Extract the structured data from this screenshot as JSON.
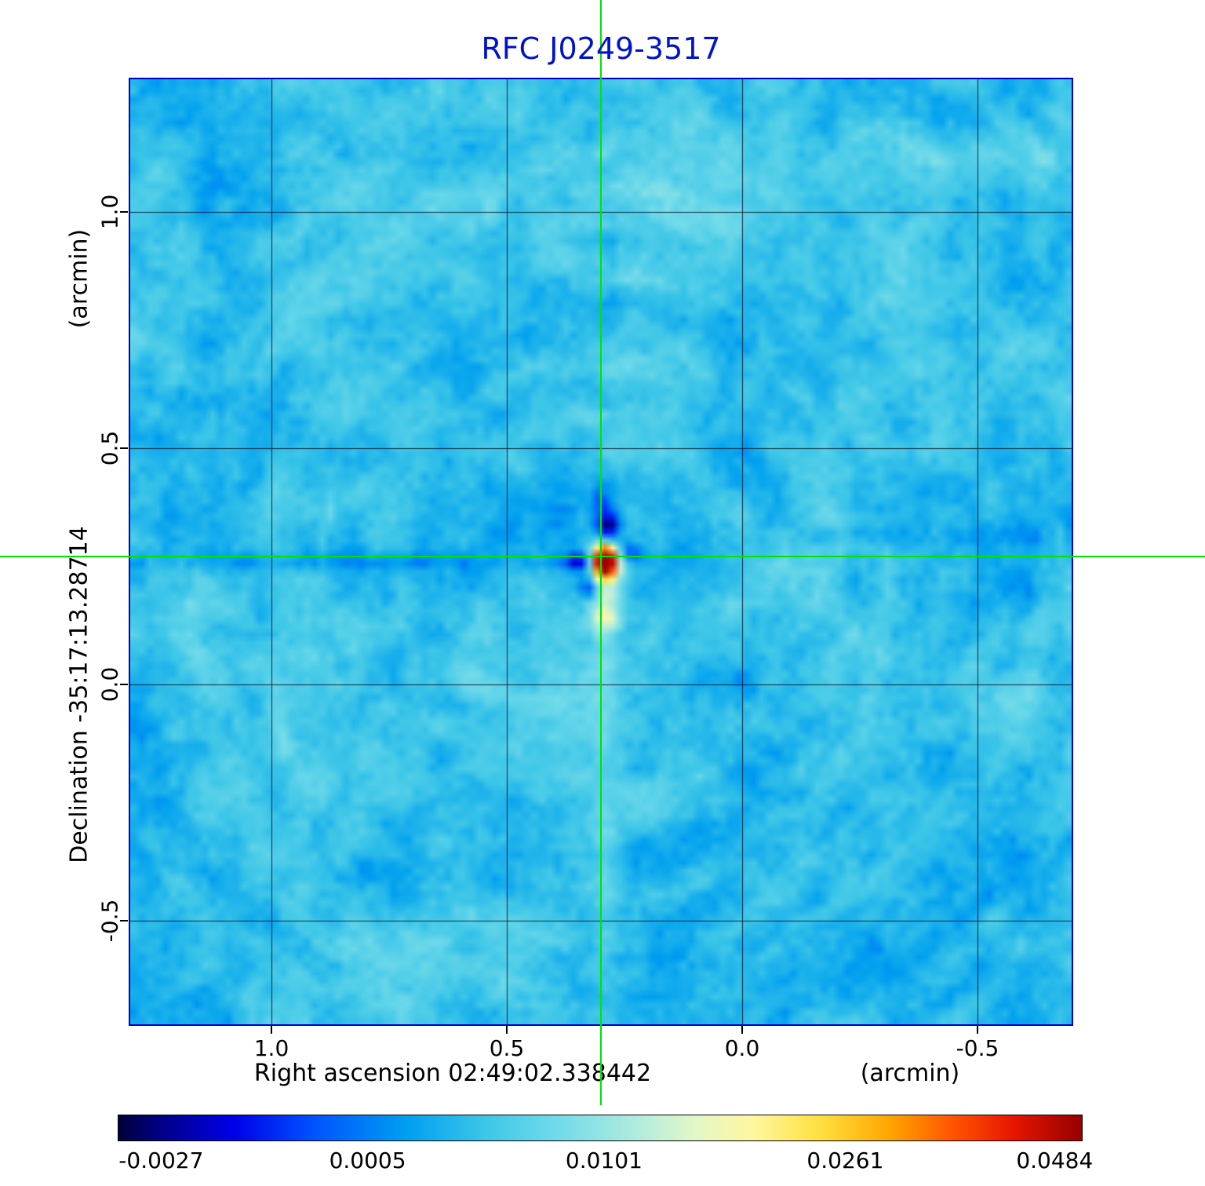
{
  "title": "RFC J0249-3517",
  "colors": {
    "title": "#0013cc",
    "frame": "#0000c4",
    "crosshair": "#00e400",
    "grid_line": "rgba(10,10,30,0.85)",
    "axis_text": "#000000",
    "colorbar_border": "#000000"
  },
  "axes": {
    "y_unit": "(arcmin)",
    "y_label": "Declination  -35:17:13.28714",
    "x_label": "Right ascension  02:49:02.338442",
    "x_unit": "(arcmin)",
    "x_tick_labels": [
      "1.0",
      "0.5",
      "0.0",
      "-0.5"
    ],
    "y_tick_labels": [
      "1.0",
      "0.5",
      "0.0",
      "-0.5"
    ]
  },
  "colorbar": {
    "tick_labels": [
      "-0.0027",
      "0.0005",
      "0.0101",
      "0.0261",
      "0.0484"
    ],
    "tick_positions": [
      0.045,
      0.259,
      0.504,
      0.754,
      0.971
    ],
    "gradient_stops": [
      [
        0.0,
        "#000038"
      ],
      [
        0.05,
        "#000090"
      ],
      [
        0.12,
        "#0000e8"
      ],
      [
        0.2,
        "#0050ff"
      ],
      [
        0.3,
        "#00a0f0"
      ],
      [
        0.38,
        "#3cc6e8"
      ],
      [
        0.46,
        "#74dcea"
      ],
      [
        0.54,
        "#b2ecdd"
      ],
      [
        0.6,
        "#e4f7c8"
      ],
      [
        0.66,
        "#fff79e"
      ],
      [
        0.73,
        "#ffdf3e"
      ],
      [
        0.8,
        "#ffa600"
      ],
      [
        0.87,
        "#ff4f00"
      ],
      [
        0.93,
        "#e61500"
      ],
      [
        1.0,
        "#970000"
      ]
    ]
  },
  "chart_data": {
    "type": "heatmap",
    "title": "RFC J0249-3517",
    "x_axis": {
      "label": "Right ascension",
      "reference": "02:49:02.338442",
      "unit": "arcmin",
      "ticks": [
        1.0,
        0.5,
        0.0,
        -0.5
      ],
      "range": [
        1.3,
        -0.7
      ],
      "direction": "value-increases-leftward"
    },
    "y_axis": {
      "label": "Declination",
      "reference": "-35:17:13.28714",
      "unit": "arcmin",
      "ticks": [
        1.0,
        0.5,
        0.0,
        -0.5
      ],
      "range": [
        1.28,
        -0.72
      ]
    },
    "value_scale": {
      "colorbar_ticks": [
        -0.0027,
        0.0005,
        0.0101,
        0.0261,
        0.0484
      ],
      "min": -0.0027,
      "max": 0.0484,
      "scale": "nonlinear"
    },
    "source": {
      "x_arcmin": 0.3,
      "y_arcmin": 0.27,
      "peak_value": 0.0484,
      "marker": "green crosshair"
    },
    "background_level": 0.0005,
    "grid": true
  }
}
